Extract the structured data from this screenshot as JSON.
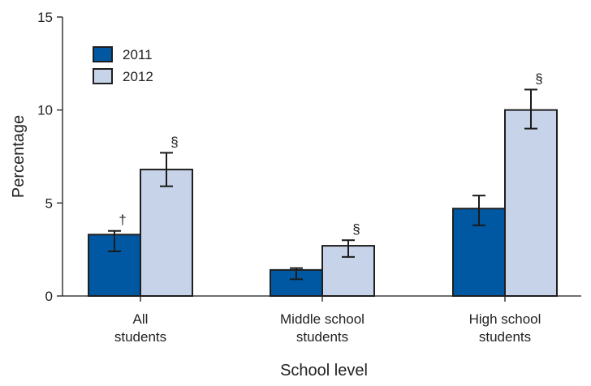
{
  "chart_data": {
    "type": "bar",
    "title": "",
    "xlabel": "School level",
    "ylabel": "Percentage",
    "ylim": [
      0,
      15
    ],
    "yticks": [
      0,
      5,
      10,
      15
    ],
    "categories": [
      [
        "All",
        "students"
      ],
      [
        "Middle school",
        "students"
      ],
      [
        "High school",
        "students"
      ]
    ],
    "series": [
      {
        "name": "2011",
        "color": "#0058a3",
        "values": [
          3.3,
          1.4,
          4.7
        ],
        "ci_low": [
          2.4,
          0.9,
          3.8
        ],
        "ci_high": [
          3.5,
          1.5,
          5.4
        ],
        "annotations": [
          "†",
          "",
          ""
        ]
      },
      {
        "name": "2012",
        "color": "#c7d3e8",
        "values": [
          6.8,
          2.7,
          10.0
        ],
        "ci_low": [
          5.9,
          2.1,
          9.0
        ],
        "ci_high": [
          7.7,
          3.0,
          11.1
        ],
        "annotations": [
          "§",
          "§",
          "§"
        ]
      }
    ],
    "legend_position": "top-left",
    "grid": false
  }
}
